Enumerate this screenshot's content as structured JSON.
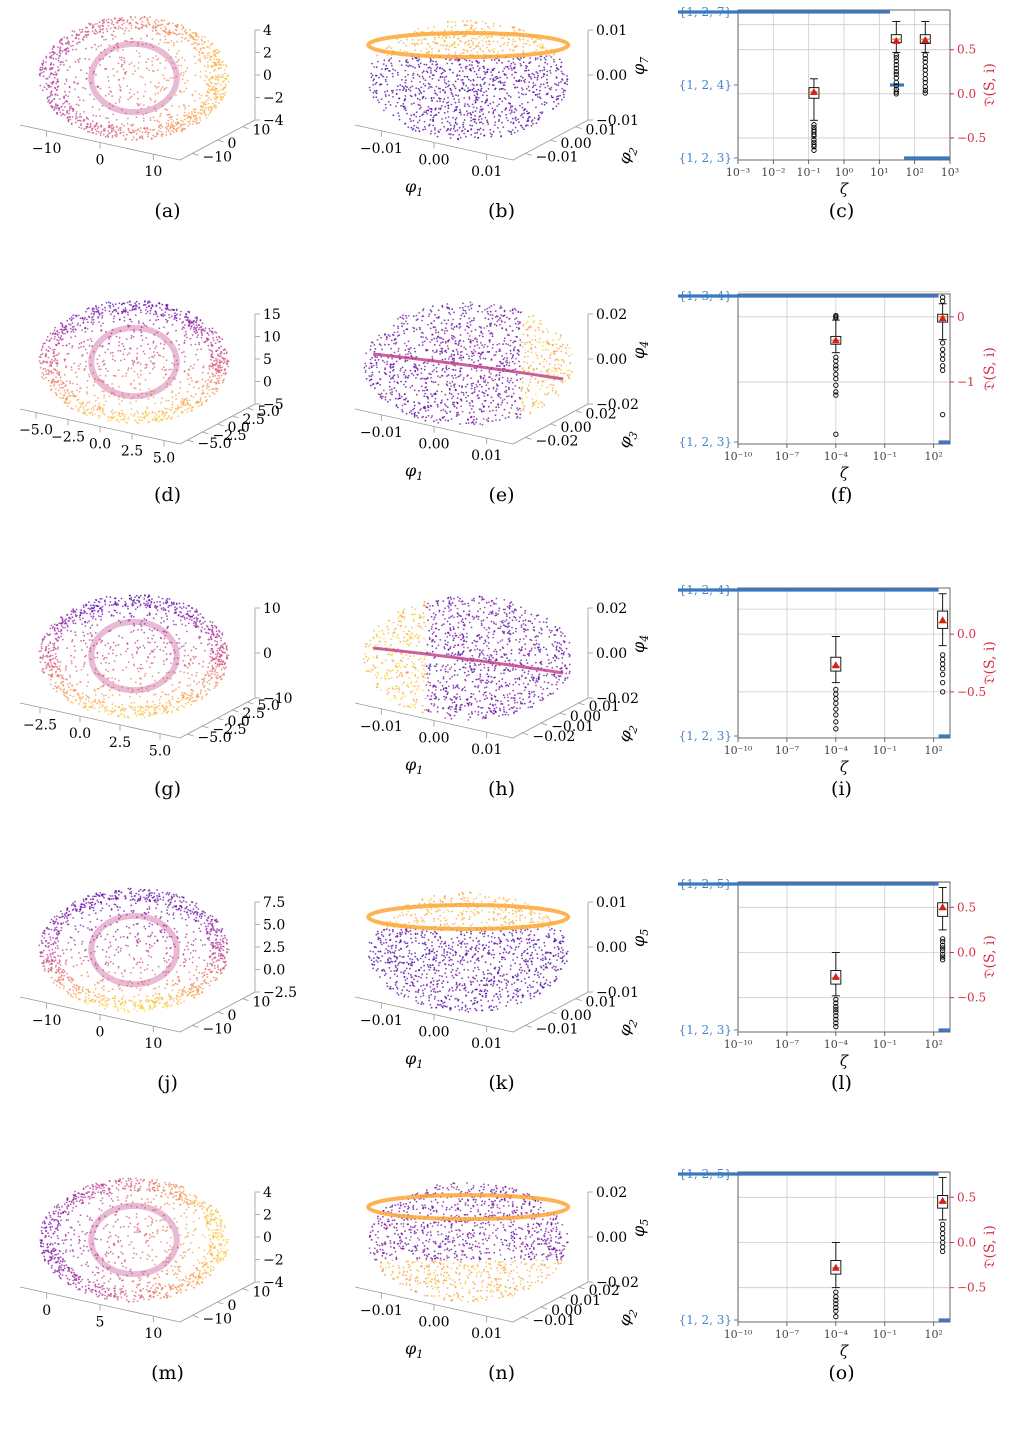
{
  "colors": {
    "set_axis": "#4a86c6",
    "disc_axis": "#d62e46",
    "line": "#3b79bf",
    "marker": "#d42020",
    "grid": "#cccccc",
    "plasma": [
      "#0d0887",
      "#6a00a8",
      "#b12a90",
      "#e16462",
      "#fca636",
      "#f0f921"
    ]
  },
  "rows": [
    {
      "surface": {
        "caption": "(a)",
        "zticks": [
          "4",
          "2",
          "0",
          "−2",
          "−4"
        ],
        "xticks": [
          "−10",
          "0",
          "10"
        ],
        "yticks": [
          "10",
          "0",
          "−10"
        ]
      },
      "embedding": {
        "caption": "(b)",
        "zlabel": "φ",
        "zsub": "7",
        "zticks": [
          "0.01",
          "0.00",
          "−0.01"
        ],
        "xlabel": "φ",
        "xsub": "1",
        "xticks": [
          "−0.01",
          "0.00",
          "0.01"
        ],
        "ylabel": "φ",
        "ysub": "2",
        "yticks": [
          "0.01",
          "0.00",
          "−0.01"
        ]
      },
      "chart_data": {
        "type": "box",
        "caption": "(c)",
        "xlabel": "ζ",
        "ylabel": "𝔇(S, i)",
        "x_scale": "log",
        "x_ticks": [
          "10⁻³",
          "10⁻²",
          "10⁻¹",
          "10⁰",
          "10¹",
          "10²",
          "10³"
        ],
        "x_tick_exp": [
          -3,
          -2,
          -1,
          0,
          1,
          2,
          3
        ],
        "xlim_exp": [
          -3,
          3
        ],
        "left_ticks": [
          "{1, 2, 7}",
          "{1, 2, 4}",
          "{1, 2, 3}"
        ],
        "right_ticks": [
          "0.5",
          "0.0",
          "−0.5"
        ],
        "right_tick_values": [
          0.5,
          0.0,
          -0.5
        ],
        "ylim": [
          -0.75,
          0.95
        ],
        "selected_set": [
          {
            "from_exp": -3.0,
            "to_exp": 1.3,
            "set": "{1, 2, 7}"
          },
          {
            "from_exp": 1.3,
            "to_exp": 1.7,
            "set": "{1, 2, 4}"
          },
          {
            "from_exp": 1.7,
            "to_exp": 3.0,
            "set": "{1, 2, 3}"
          }
        ],
        "boxes": [
          {
            "x_exp": -0.85,
            "whisker_low": -0.3,
            "q1": -0.05,
            "median": 0.02,
            "q3": 0.07,
            "whisker_high": 0.17,
            "mean": 0.02,
            "outliers": [
              -0.35,
              -0.38,
              -0.41,
              -0.43,
              -0.46,
              -0.48,
              -0.52,
              -0.55,
              -0.58,
              -0.6,
              -0.64
            ]
          },
          {
            "x_exp": 1.48,
            "whisker_low": 0.47,
            "q1": 0.58,
            "median": 0.62,
            "q3": 0.67,
            "whisker_high": 0.82,
            "mean": 0.6,
            "outliers": [
              0.44,
              0.41,
              0.37,
              0.33,
              0.29,
              0.25,
              0.22,
              0.18,
              0.13,
              0.09,
              0.05,
              0.02,
              0.0
            ]
          },
          {
            "x_exp": 2.3,
            "whisker_low": 0.47,
            "q1": 0.57,
            "median": 0.62,
            "q3": 0.67,
            "whisker_high": 0.82,
            "mean": 0.61,
            "outliers": [
              0.44,
              0.4,
              0.36,
              0.31,
              0.27,
              0.22,
              0.17,
              0.13,
              0.08,
              0.04,
              0.01
            ]
          }
        ]
      }
    },
    {
      "surface": {
        "caption": "(d)",
        "zticks": [
          "15",
          "10",
          "5",
          "0",
          "−5"
        ],
        "xticks": [
          "−5.0",
          "−2.5",
          "0.0",
          "2.5",
          "5.0"
        ],
        "yticks": [
          "5.0",
          "2.5",
          "0.0",
          "−2.5",
          "−5.0"
        ]
      },
      "embedding": {
        "caption": "(e)",
        "zlabel": "φ",
        "zsub": "4",
        "zticks": [
          "0.02",
          "0.00",
          "−0.02"
        ],
        "xlabel": "φ",
        "xsub": "1",
        "xticks": [
          "−0.01",
          "0.00",
          "0.01"
        ],
        "ylabel": "φ",
        "ysub": "3",
        "yticks": [
          "0.02",
          "0.00",
          "−0.02"
        ]
      },
      "chart_data": {
        "type": "box",
        "caption": "(f)",
        "xlabel": "ζ",
        "ylabel": "𝔇(S, i)",
        "x_scale": "log",
        "x_ticks": [
          "10⁻¹⁰",
          "10⁻⁷",
          "10⁻⁴",
          "10⁻¹",
          "10²"
        ],
        "x_tick_exp": [
          -10,
          -7,
          -4,
          -1,
          2
        ],
        "xlim_exp": [
          -10,
          3
        ],
        "left_ticks": [
          "{1, 3, 4}",
          "{1, 2, 3}"
        ],
        "right_ticks": [
          "0",
          "−1"
        ],
        "right_tick_values": [
          0,
          -1
        ],
        "ylim": [
          -1.95,
          0.35
        ],
        "selected_set": [
          {
            "from_exp": -10.0,
            "to_exp": 2.3,
            "set": "{1, 3, 4}"
          },
          {
            "from_exp": 2.3,
            "to_exp": 3.0,
            "set": "{1, 2, 3}"
          }
        ],
        "boxes": [
          {
            "x_exp": -4.0,
            "whisker_low": -0.55,
            "q1": -0.42,
            "median": -0.36,
            "q3": -0.3,
            "whisker_high": -0.05,
            "mean": -0.36,
            "outliers": [
              -0.02,
              0.0,
              0.02,
              -0.62,
              -0.68,
              -0.75,
              -0.8,
              -0.88,
              -0.95,
              -1.05,
              -1.15,
              -1.2,
              -1.8
            ]
          },
          {
            "x_exp": 2.55,
            "whisker_low": -0.35,
            "q1": -0.08,
            "median": 0.0,
            "q3": 0.04,
            "whisker_high": 0.2,
            "mean": -0.02,
            "outliers": [
              0.3,
              0.24,
              -0.4,
              -0.5,
              -0.58,
              -0.65,
              -0.75,
              -0.82,
              -1.5
            ]
          }
        ]
      }
    },
    {
      "surface": {
        "caption": "(g)",
        "zticks": [
          "10",
          "0",
          "−10"
        ],
        "xticks": [
          "−2.5",
          "0.0",
          "2.5",
          "5.0"
        ],
        "yticks": [
          "5.0",
          "2.5",
          "0.0",
          "−2.5",
          "−5.0"
        ]
      },
      "embedding": {
        "caption": "(h)",
        "zlabel": "φ",
        "zsub": "4",
        "zticks": [
          "0.02",
          "0.00",
          "−0.02"
        ],
        "xlabel": "φ",
        "xsub": "1",
        "xticks": [
          "−0.01",
          "0.00",
          "0.01"
        ],
        "ylabel": "φ",
        "ysub": "2",
        "yticks": [
          "0.01",
          "0.00",
          "−0.01",
          "−0.02"
        ]
      },
      "chart_data": {
        "type": "box",
        "caption": "(i)",
        "xlabel": "ζ",
        "ylabel": "𝔇(S, i)",
        "x_scale": "log",
        "x_ticks": [
          "10⁻¹⁰",
          "10⁻⁷",
          "10⁻⁴",
          "10⁻¹",
          "10²"
        ],
        "x_tick_exp": [
          -10,
          -7,
          -4,
          -1,
          2
        ],
        "xlim_exp": [
          -10,
          3
        ],
        "left_ticks": [
          "{1, 2, 4}",
          "{1, 2, 3}"
        ],
        "right_ticks": [
          "0.0",
          "−0.5"
        ],
        "right_tick_values": [
          0.0,
          -0.5
        ],
        "ylim": [
          -0.9,
          0.4
        ],
        "selected_set": [
          {
            "from_exp": -10.0,
            "to_exp": 2.3,
            "set": "{1, 2, 4}"
          },
          {
            "from_exp": 2.3,
            "to_exp": 3.0,
            "set": "{1, 2, 3}"
          }
        ],
        "boxes": [
          {
            "x_exp": -4.0,
            "whisker_low": -0.42,
            "q1": -0.32,
            "median": -0.28,
            "q3": -0.2,
            "whisker_high": -0.02,
            "mean": -0.27,
            "outliers": [
              -0.48,
              -0.52,
              -0.56,
              -0.6,
              -0.65,
              -0.7,
              -0.76,
              -0.82
            ]
          },
          {
            "x_exp": 2.55,
            "whisker_low": -0.1,
            "q1": 0.05,
            "median": 0.1,
            "q3": 0.2,
            "whisker_high": 0.35,
            "mean": 0.12,
            "outliers": [
              -0.18,
              -0.22,
              -0.26,
              -0.3,
              -0.35,
              -0.42,
              -0.5
            ]
          }
        ]
      }
    },
    {
      "surface": {
        "caption": "(j)",
        "zticks": [
          "7.5",
          "5.0",
          "2.5",
          "0.0",
          "−2.5"
        ],
        "xticks": [
          "−10",
          "0",
          "10"
        ],
        "yticks": [
          "10",
          "0",
          "−10"
        ]
      },
      "embedding": {
        "caption": "(k)",
        "zlabel": "φ",
        "zsub": "5",
        "zticks": [
          "0.01",
          "0.00",
          "−0.01"
        ],
        "xlabel": "φ",
        "xsub": "1",
        "xticks": [
          "−0.01",
          "0.00",
          "0.01"
        ],
        "ylabel": "φ",
        "ysub": "2",
        "yticks": [
          "0.01",
          "0.00",
          "−0.01"
        ]
      },
      "chart_data": {
        "type": "box",
        "caption": "(l)",
        "xlabel": "ζ",
        "ylabel": "𝔇(S, i)",
        "x_scale": "log",
        "x_ticks": [
          "10⁻¹⁰",
          "10⁻⁷",
          "10⁻⁴",
          "10⁻¹",
          "10²"
        ],
        "x_tick_exp": [
          -10,
          -7,
          -4,
          -1,
          2
        ],
        "xlim_exp": [
          -10,
          3
        ],
        "left_ticks": [
          "{1, 2, 5}",
          "{1, 2, 3}"
        ],
        "right_ticks": [
          "0.5",
          "0.0",
          "−0.5"
        ],
        "right_tick_values": [
          0.5,
          0.0,
          -0.5
        ],
        "ylim": [
          -0.88,
          0.78
        ],
        "selected_set": [
          {
            "from_exp": -10.0,
            "to_exp": 2.3,
            "set": "{1, 2, 5}"
          },
          {
            "from_exp": 2.3,
            "to_exp": 3.0,
            "set": "{1, 2, 3}"
          }
        ],
        "boxes": [
          {
            "x_exp": -4.0,
            "whisker_low": -0.48,
            "q1": -0.35,
            "median": -0.28,
            "q3": -0.2,
            "whisker_high": 0.0,
            "mean": -0.27,
            "outliers": [
              -0.52,
              -0.56,
              -0.6,
              -0.63,
              -0.66,
              -0.7,
              -0.74,
              -0.78,
              -0.82
            ]
          },
          {
            "x_exp": 2.55,
            "whisker_low": 0.25,
            "q1": 0.4,
            "median": 0.48,
            "q3": 0.55,
            "whisker_high": 0.72,
            "mean": 0.5,
            "outliers": [
              0.15,
              0.12,
              0.08,
              0.05,
              0.02,
              -0.02,
              -0.05,
              -0.08
            ]
          }
        ]
      }
    },
    {
      "surface": {
        "caption": "(m)",
        "zticks": [
          "4",
          "2",
          "0",
          "−2",
          "−4"
        ],
        "xticks": [
          "0",
          "5",
          "10"
        ],
        "yticks": [
          "10",
          "0",
          "−10"
        ]
      },
      "embedding": {
        "caption": "(n)",
        "zlabel": "φ",
        "zsub": "5",
        "zticks": [
          "0.02",
          "0.00",
          "−0.02"
        ],
        "xlabel": "φ",
        "xsub": "1",
        "xticks": [
          "−0.01",
          "0.00",
          "0.01"
        ],
        "ylabel": "φ",
        "ysub": "2",
        "yticks": [
          "0.02",
          "0.01",
          "0.00",
          "−0.01"
        ]
      },
      "chart_data": {
        "type": "box",
        "caption": "(o)",
        "xlabel": "ζ",
        "ylabel": "𝔇(S, i)",
        "x_scale": "log",
        "x_ticks": [
          "10⁻¹⁰",
          "10⁻⁷",
          "10⁻⁴",
          "10⁻¹",
          "10²"
        ],
        "x_tick_exp": [
          -10,
          -7,
          -4,
          -1,
          2
        ],
        "xlim_exp": [
          -10,
          3
        ],
        "left_ticks": [
          "{1, 2, 5}",
          "{1, 2, 3}"
        ],
        "right_ticks": [
          "0.5",
          "0.0",
          "−0.5"
        ],
        "right_tick_values": [
          0.5,
          0.0,
          -0.5
        ],
        "ylim": [
          -0.88,
          0.78
        ],
        "selected_set": [
          {
            "from_exp": -10.0,
            "to_exp": 2.3,
            "set": "{1, 2, 5}"
          },
          {
            "from_exp": 2.3,
            "to_exp": 3.0,
            "set": "{1, 2, 3}"
          }
        ],
        "boxes": [
          {
            "x_exp": -4.0,
            "whisker_low": -0.5,
            "q1": -0.35,
            "median": -0.28,
            "q3": -0.2,
            "whisker_high": 0.0,
            "mean": -0.28,
            "outliers": [
              -0.55,
              -0.6,
              -0.64,
              -0.68,
              -0.72,
              -0.76,
              -0.82
            ]
          },
          {
            "x_exp": 2.55,
            "whisker_low": 0.25,
            "q1": 0.38,
            "median": 0.45,
            "q3": 0.52,
            "whisker_high": 0.72,
            "mean": 0.46,
            "outliers": [
              0.2,
              0.15,
              0.1,
              0.05,
              0.0,
              -0.05,
              -0.1
            ]
          }
        ]
      }
    }
  ]
}
